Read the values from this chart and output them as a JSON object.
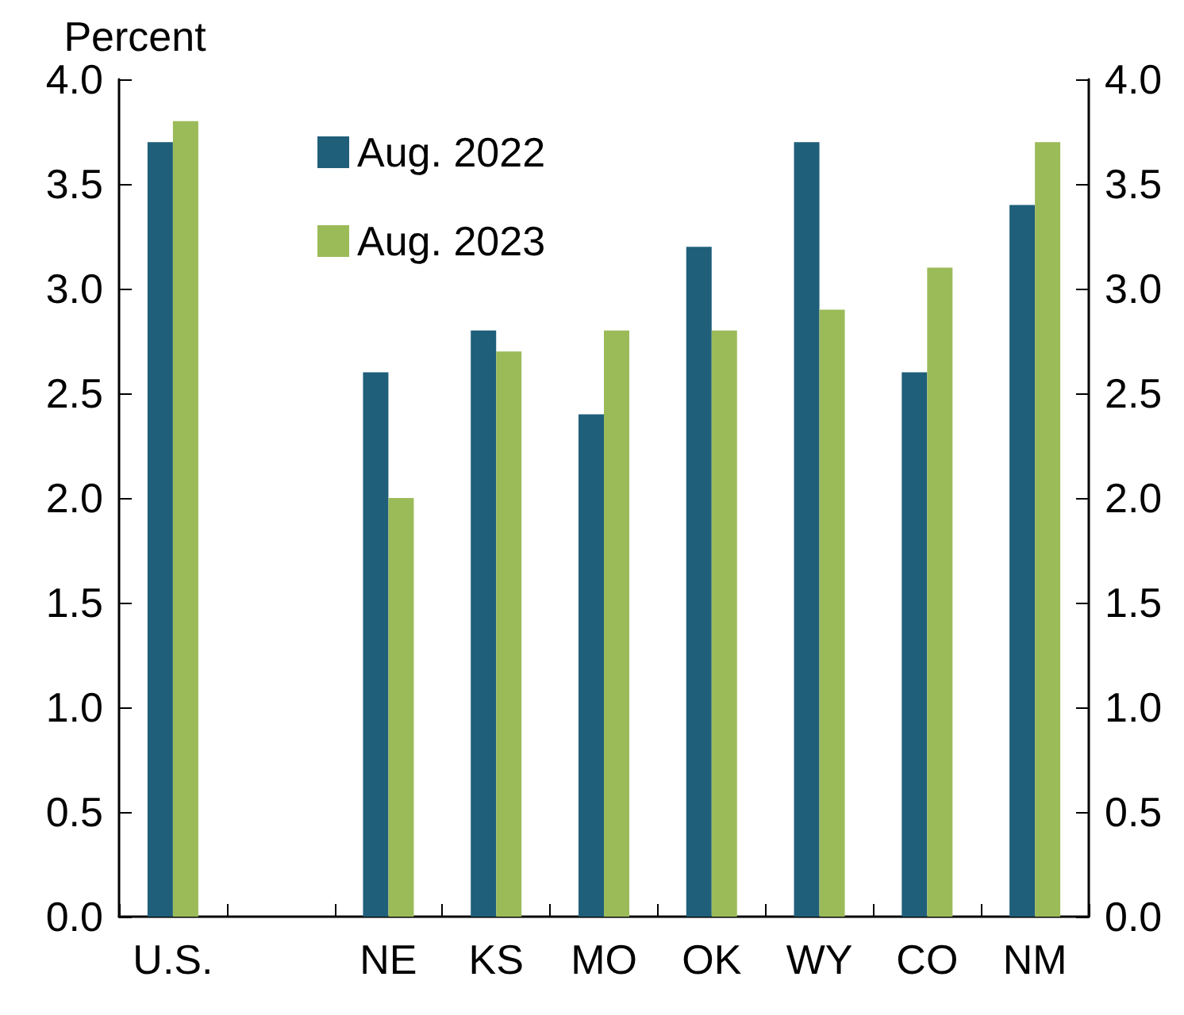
{
  "chart_data": {
    "type": "bar",
    "ylabel": "Percent",
    "categories": [
      "U.S.",
      null,
      "NE",
      "KS",
      "MO",
      "OK",
      "WY",
      "CO",
      "NM"
    ],
    "series": [
      {
        "name": "Aug. 2022",
        "color": "#1f5f7a",
        "values": [
          3.7,
          null,
          2.6,
          2.8,
          2.4,
          3.2,
          3.7,
          2.6,
          3.4
        ]
      },
      {
        "name": "Aug. 2023",
        "color": "#9bbb59",
        "values": [
          3.8,
          null,
          2.0,
          2.7,
          2.8,
          2.8,
          2.9,
          3.1,
          3.7
        ]
      }
    ],
    "ylim": [
      0,
      4
    ],
    "yticks": [
      {
        "value": 0,
        "label": "0.0"
      },
      {
        "value": 0.5,
        "label": "0.5"
      },
      {
        "value": 1,
        "label": "1.0"
      },
      {
        "value": 1.5,
        "label": "1.5"
      },
      {
        "value": 2,
        "label": "2.0"
      },
      {
        "value": 2.5,
        "label": "2.5"
      },
      {
        "value": 3,
        "label": "3.0"
      },
      {
        "value": 3.5,
        "label": "3.5"
      },
      {
        "value": 4,
        "label": "4.0"
      }
    ],
    "y2lim": [
      0,
      4
    ],
    "y2ticks": [
      {
        "value": 0,
        "label": "0.0"
      },
      {
        "value": 0.5,
        "label": "0.5"
      },
      {
        "value": 1,
        "label": "1.0"
      },
      {
        "value": 1.5,
        "label": "1.5"
      },
      {
        "value": 2,
        "label": "2.0"
      },
      {
        "value": 2.5,
        "label": "2.5"
      },
      {
        "value": 3,
        "label": "3.0"
      },
      {
        "value": 3.5,
        "label": "3.5"
      },
      {
        "value": 4,
        "label": "4.0"
      }
    ],
    "grid": false,
    "legend": "top left"
  }
}
